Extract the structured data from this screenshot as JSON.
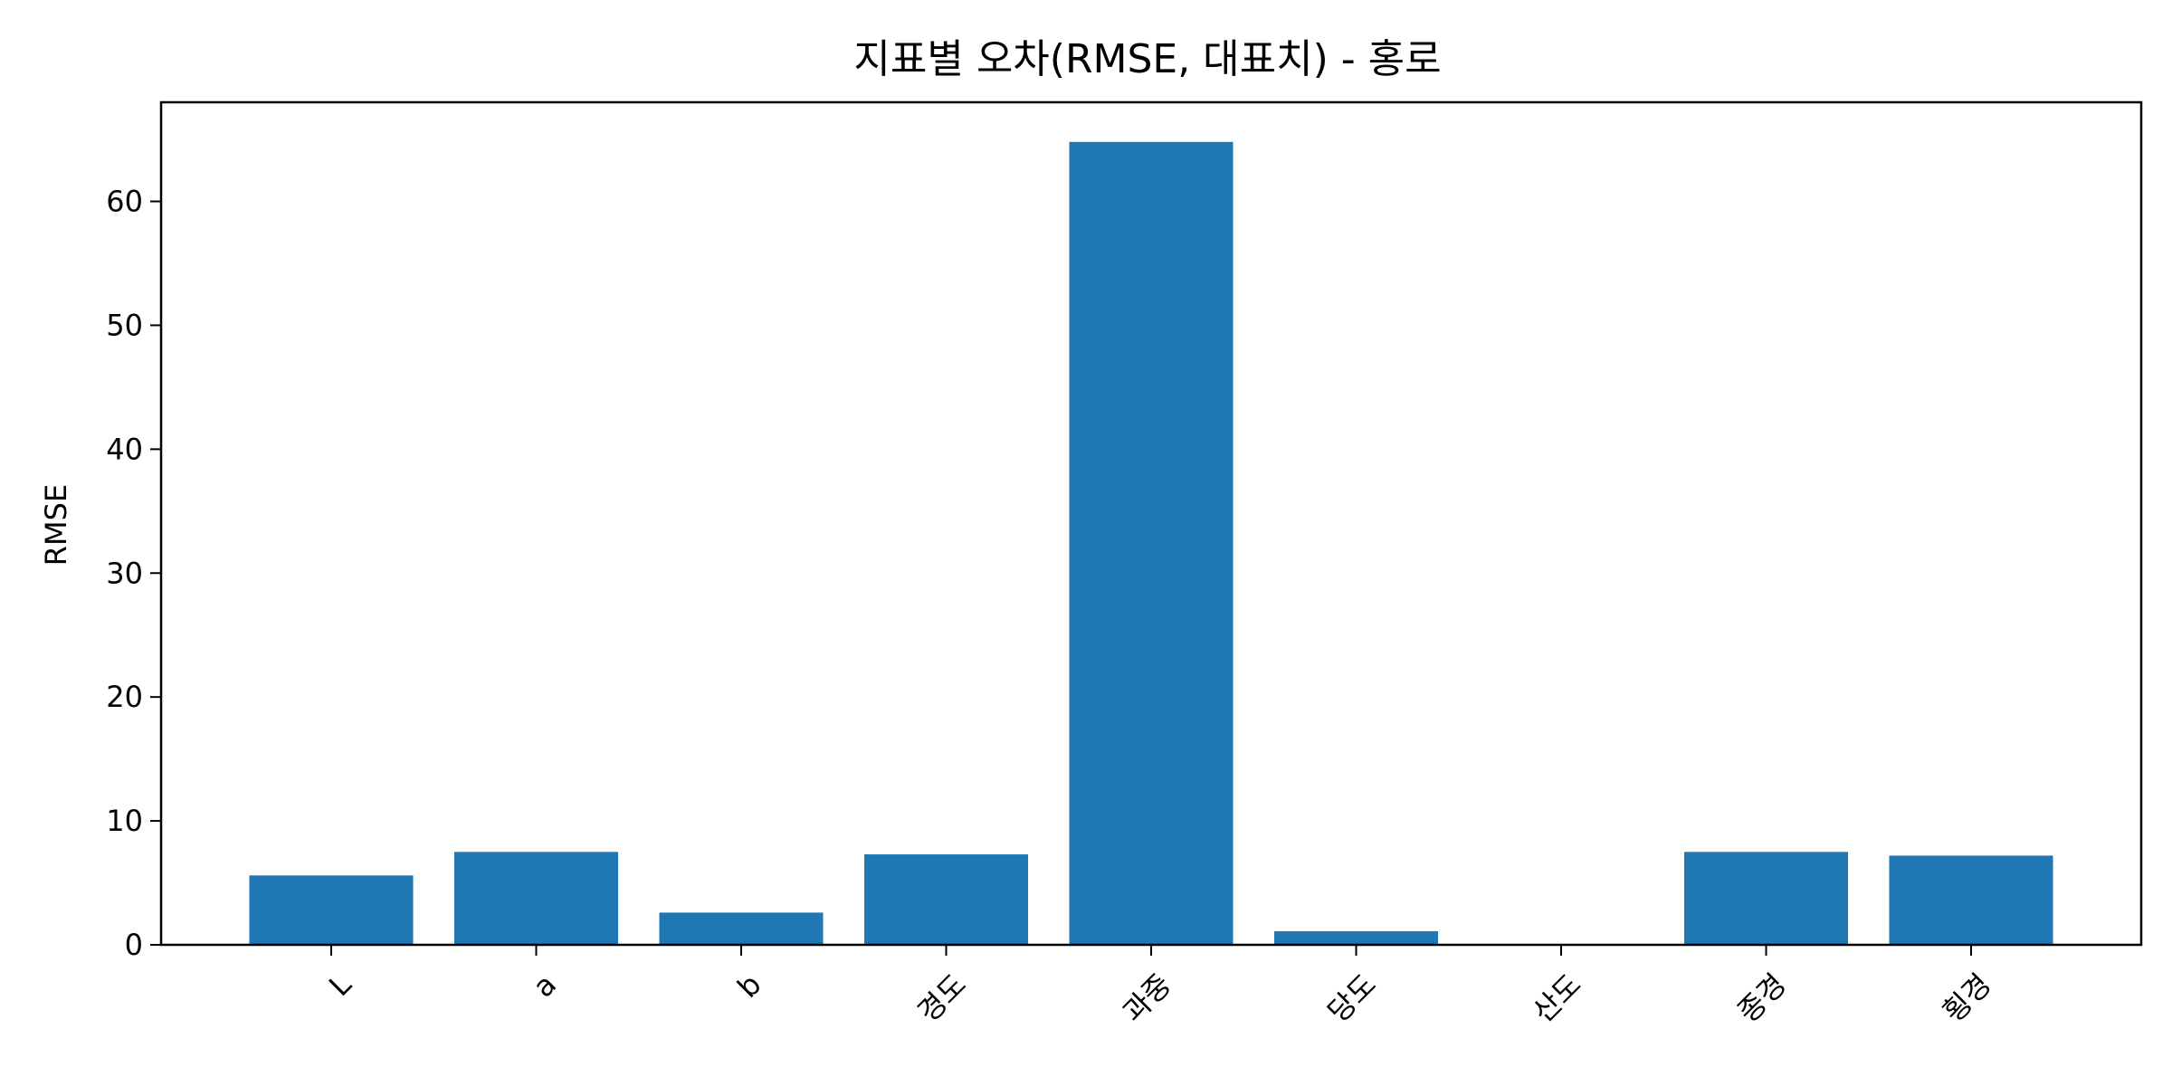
{
  "chart_data": {
    "type": "bar",
    "title": "지표별 오차(RMSE, 대표치) - 홍로",
    "xlabel": "",
    "ylabel": "RMSE",
    "categories": [
      "L",
      "a",
      "b",
      "경도",
      "과중",
      "당도",
      "산도",
      "종경",
      "횡경"
    ],
    "values": [
      5.6,
      7.5,
      2.6,
      7.3,
      64.8,
      1.1,
      0.0,
      7.5,
      7.2
    ],
    "ylim": [
      0,
      68
    ],
    "yticks": [
      0,
      10,
      20,
      30,
      40,
      50,
      60
    ],
    "grid": false,
    "bar_color": "#1f77b4"
  }
}
